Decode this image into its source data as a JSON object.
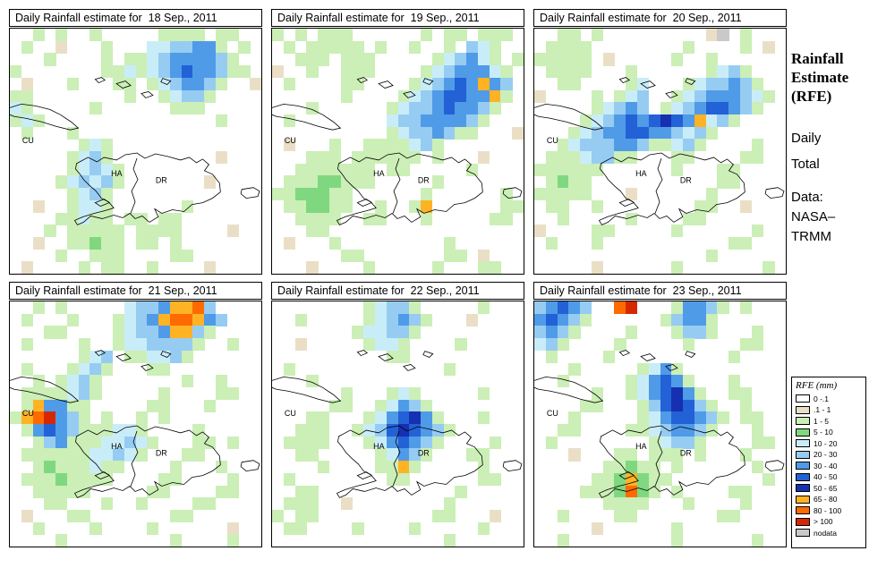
{
  "panels": [
    {
      "title": "Daily Rainfall estimate for  18 Sep., 2011",
      "grid": [
        "..g.g..g.....gggg.gg..",
        ".g..b...g...ccllmmg.g.",
        "...g....g.ggclmmmmlg..",
        "g.......ggcgclmBmmlgg.",
        ".b...g...gg.gclmmlg..b",
        "gg........g..gcllg....",
        "cg.....g......ggg.....",
        "gcg...............g...",
        ".g...g................",
        "......gcg.............",
        ".....gclg.........b...",
        ".....gclcg............",
        "....gclclg.......b....",
        ".....gclg.............",
        "..b..gccg......g......",
        "....ggcgg.gg.gg.......",
        "...g.ggggg.gggg....b..",
        "..b..ggGgg.gg.g.......",
        "....g..ggg....gg......",
        ".b....g.gg..g....b...."
      ]
    },
    {
      "title": "Daily Rainfall estimate for  19 Sep., 2011",
      "grid": [
        "g.g.ggg......g.gg.ggg.",
        ".g.ggggg.g..g..g.lcg..",
        "..ggg.ggg.....gclmcg.g",
        "b..g..ggg....gclmmmcg.",
        ".g....gg....gclmBmyml.",
        "......g....gclmBBmmyg.",
        "...g......gcllmBmmlg..",
        ".g........cllmmmmlg...",
        "..........gcllmlgg...b",
        ".b...g..ggggclg.......",
        "...ggg.gggggg.g...b...",
        "..ggggggg.gg.....g....",
        ".gggGGggg.....g.......",
        "ggGGGgg......g......g.",
        ".ggGGgg..g..gy......gg",
        "..gggg..gg...g.....gg.",
        "...gg.................",
        ".b...g.........g......",
        "......gg.......gg.b...",
        "...b....g.....g...gg.."
      ]
    },
    {
      "title": "Daily Rainfall estimate for  20 Sep., 2011",
      "grid": [
        "..gg.g.........bx.g...",
        ".gggg........g....g.b.",
        "ggggg.b.....g..g......",
        ".gggg...g......gclg...",
        "..gg....gc...gcllmlg..",
        "b....g.gcl..gclmmmlcg.",
        ".....gclml.gclmBBmlg..",
        "....gclmBmBNBmyclg....",
        "...gclmmBBmmlclg......",
        "..gclllmmlggclg....g..",
        ".gggcllgg...gg....gg..",
        "gggggg......g...gg....",
        ".gGgg...........gg....",
        "ggggg...b......g......",
        ".gg..g........gg..b...",
        "..g.....g....gg.......",
        "b....gg.....g......g..",
        ".g...g...........gg...",
        "...............g......",
        ".....b......g.......g."
      ]
    },
    {
      "title": "Daily Rainfall estimate for  21 Sep., 2011",
      "grid": [
        "..g.g.....cllmyyol....",
        ".g...g...gclmyooyml...",
        "...gg....gcllmyylg....",
        ".g....g..gccllllg..g..",
        "......gcl.ggcclg......",
        ".g...gclg...gg........",
        "..g.gclg.......g..g...",
        ".ggggclg.....g....gg..",
        ".gymmgg.....gg...g....",
        "gyormlg.g..g.g........",
        ".gmBmlgggccg....g.....",
        "..glmgggcclcg...gg.g..",
        ".ggggggcclcg...gg.....",
        "..gGgggcgg....g...g...",
        ".gggGgggg....gg....g..",
        "..ggggg.....gg....gg..",
        "...gg...g..g....gg....",
        ".b...gg.......gg......",
        "..g....g....g......b..",
        "....g.........g....g.."
      ]
    },
    {
      "title": "Daily Rainfall estimate for  22 Sep., 2011",
      "grid": [
        "........gcllg.....g...",
        "..g.....gclmlg...b....",
        ".......gccllg.........",
        "..b.....gccg....g.....",
        "..........gg..........",
        ".g.............g......",
        "...g..................",
        "......g...gcg.....g...",
        ".....gg..gcmlg........",
        "...gg...gcmBNmg...g...",
        "..ggg..gclBNBmlg......",
        ".gggg...gcmBmlg....g..",
        "..gg.....gcmlg...gg...",
        "....g....ggyg.....g...",
        ".g........gg......gg..",
        "..gg............g.....",
        ".ggg..b........g......",
        "g.gg..........gg...b..",
        ".gg....g....g.....g...",
        "...............g......"
      ]
    },
    {
      "title": "Daily Rainfall estimate for  23 Sep., 2011",
      "grid": [
        "lmBml..or...gmmlg.g...",
        "mBmlg......glmmg......",
        "lmlg....g...gllg...g..",
        "clg....g.....g....gg..",
        ".g....g..........g....",
        "...g.....gcmg.........",
        "..g.....gcmBmg...g....",
        ".....g..gcmBNmg..gg...",
        "....gg...glBNBlg..g...",
        "...g.....gcmBBmlg.gg..",
        "..gg....ggclmmlg...g..",
        ".g........gcllg....gg.",
        "...b...gg.ggg.g...g...",
        "......ggGgg.g......g..",
        ".....ggGyGgg........g.",
        "....gggGoGg.g....gg...",
        "......gggg...g....g...",
        "..g....gg.......gg....",
        ".....b......g.........",
        "..g.........g......g.."
      ]
    }
  ],
  "map_labels": {
    "cuba": "CU",
    "haiti": "HA",
    "dominican": "DR"
  },
  "sidebar": {
    "title_lines": [
      "Rainfall",
      "Estimate",
      "(RFE)"
    ],
    "subtitle_lines": [
      "Daily",
      "Total"
    ],
    "data_lines": [
      "Data:",
      "NASA–",
      "TRMM"
    ]
  },
  "legend": {
    "title": "RFE (mm)",
    "entries": [
      {
        "label": "0 -.1",
        "color": "#FFFFFF"
      },
      {
        "label": ".1 - 1",
        "color": "#EADFC6"
      },
      {
        "label": "1 - 5",
        "color": "#CBEFB6"
      },
      {
        "label": "5 - 10",
        "color": "#7FD87F"
      },
      {
        "label": "10 - 20",
        "color": "#C9EDF8"
      },
      {
        "label": "20 - 30",
        "color": "#96CCF2"
      },
      {
        "label": "30 - 40",
        "color": "#4F9BE8"
      },
      {
        "label": "40 - 50",
        "color": "#2361D6"
      },
      {
        "label": "50 - 65",
        "color": "#1530B0"
      },
      {
        "label": "65 - 80",
        "color": "#FFB324"
      },
      {
        "label": "80 - 100",
        "color": "#FF6A00"
      },
      {
        "label": "> 100",
        "color": "#D62800"
      },
      {
        "label": "nodata",
        "color": "#C9C9C9"
      }
    ]
  },
  "palette": {
    "b": "#EADFC6",
    "g": "#CBEFB6",
    "G": "#7FD87F",
    "c": "#C9EDF8",
    "l": "#96CCF2",
    "m": "#4F9BE8",
    "B": "#2361D6",
    "N": "#1530B0",
    "y": "#FFB324",
    "o": "#FF6A00",
    "r": "#D62800",
    "x": "#C9C9C9"
  }
}
